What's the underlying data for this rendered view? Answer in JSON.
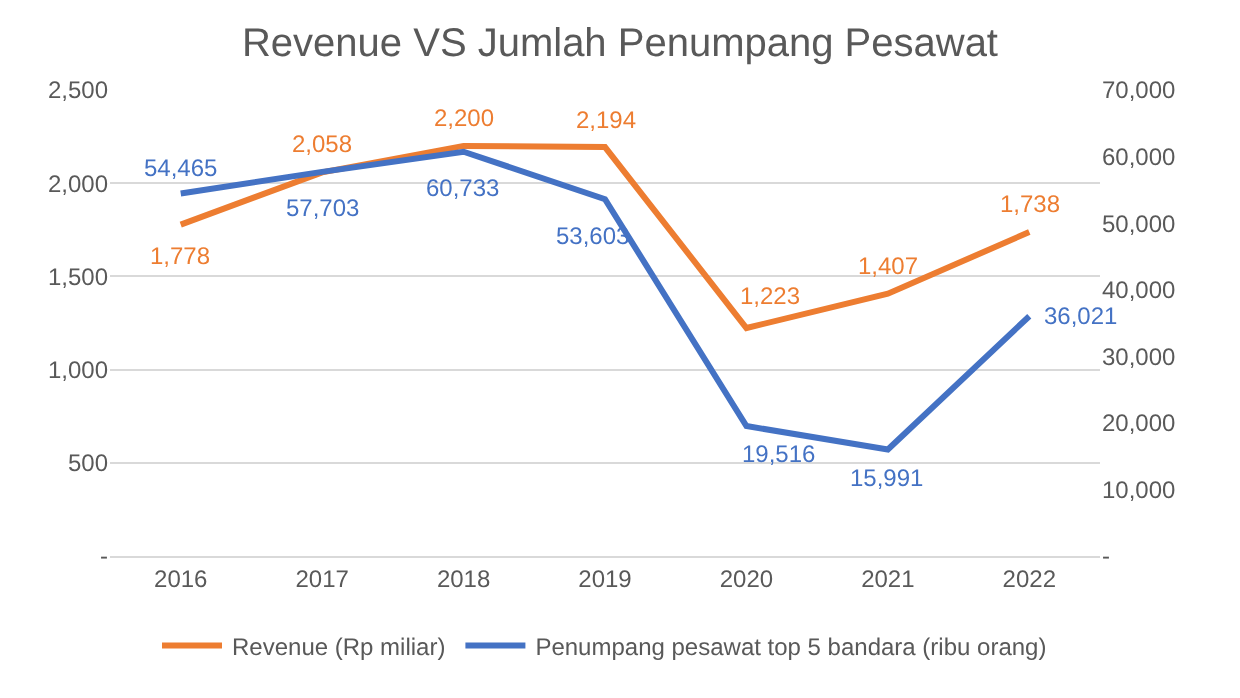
{
  "chart_data": {
    "type": "line",
    "title": "Revenue VS Jumlah Penumpang Pesawat",
    "categories": [
      "2016",
      "2017",
      "2018",
      "2019",
      "2020",
      "2021",
      "2022"
    ],
    "series": [
      {
        "name": "Revenue (Rp miliar)",
        "color": "#ed7d31",
        "values": [
          1778,
          2058,
          2200,
          2194,
          1223,
          1407,
          1738
        ],
        "value_labels": [
          "1,778",
          "2,058",
          "2,200",
          "2,194",
          "1,223",
          "1,407",
          "1,738"
        ]
      },
      {
        "name": "Penumpang pesawat top 5 bandara (ribu orang)",
        "color": "#4472c4",
        "axis": "y2",
        "values": [
          54465,
          57703,
          60733,
          53603,
          19516,
          15991,
          36021
        ],
        "value_labels": [
          "54,465",
          "57,703",
          "60,733",
          "53,603",
          "19,516",
          "15,991",
          "36,021"
        ]
      }
    ],
    "ylim": [
      0,
      2500
    ],
    "yticks": [
      {
        "value": 0,
        "label": "-"
      },
      {
        "value": 500,
        "label": "500"
      },
      {
        "value": 1000,
        "label": "1,000"
      },
      {
        "value": 1500,
        "label": "1,500"
      },
      {
        "value": 2000,
        "label": "2,000"
      },
      {
        "value": 2500,
        "label": "2,500"
      }
    ],
    "y2lim": [
      0,
      70000
    ],
    "y2ticks": [
      {
        "value": 0,
        "label": "-"
      },
      {
        "value": 10000,
        "label": "10,000"
      },
      {
        "value": 20000,
        "label": "20,000"
      },
      {
        "value": 30000,
        "label": "30,000"
      },
      {
        "value": 40000,
        "label": "40,000"
      },
      {
        "value": 50000,
        "label": "50,000"
      },
      {
        "value": 60000,
        "label": "60,000"
      },
      {
        "value": 70000,
        "label": "70,000"
      }
    ],
    "grid": "y",
    "legend": "bottom",
    "marker": "none",
    "line_style": "solid"
  }
}
